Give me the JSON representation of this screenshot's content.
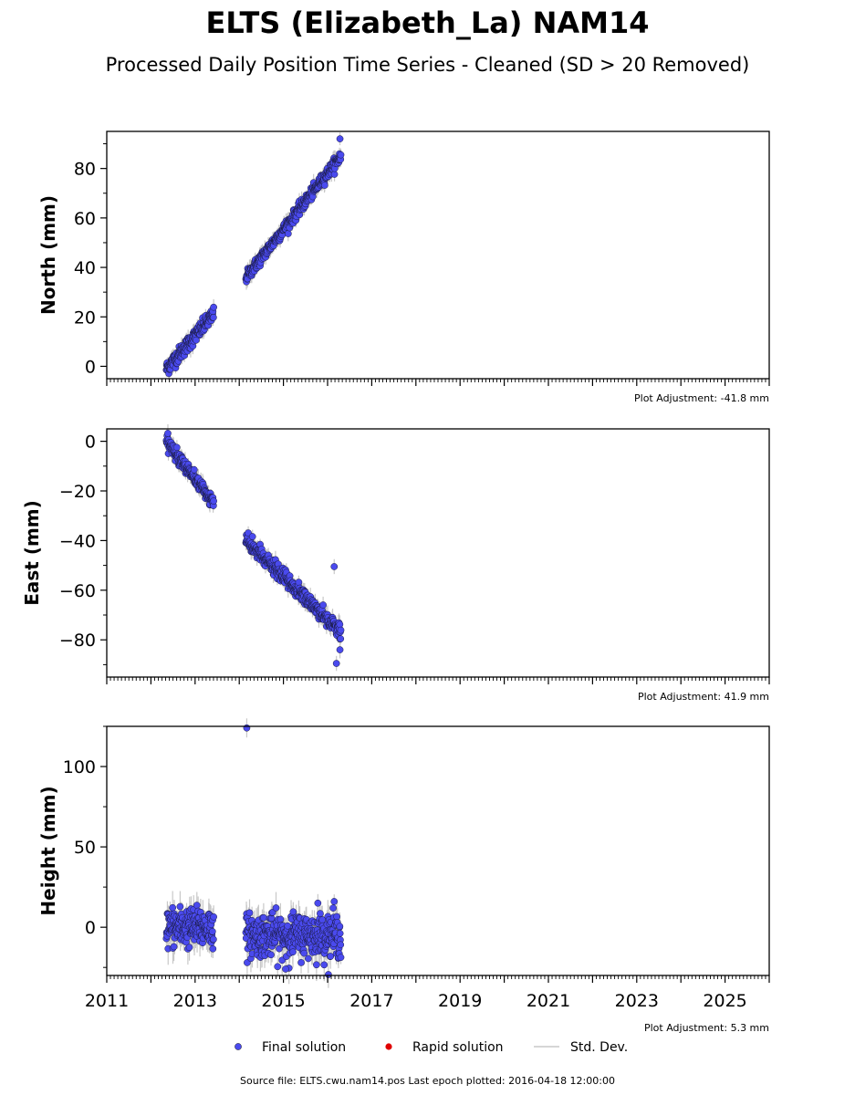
{
  "title": "ELTS (Elizabeth_La) NAM14",
  "subtitle": "Processed Daily Position Time Series - Cleaned (SD > 20 Removed)",
  "chart_data": [
    {
      "type": "scatter",
      "ylabel": "North (mm)",
      "ylim": [
        -5,
        95
      ],
      "yticks": [
        0,
        20,
        40,
        60,
        80
      ],
      "xlim": [
        2011,
        2026
      ],
      "adjustment_label": "Plot Adjustment: -41.8 mm",
      "segments": [
        {
          "x0": 2012.35,
          "x1": 2013.42,
          "y0": -1,
          "y1": 21,
          "noise": 1.5,
          "n": 190
        },
        {
          "x0": 2014.15,
          "x1": 2016.3,
          "y0": 36,
          "y1": 85,
          "noise": 1.2,
          "n": 360
        }
      ],
      "outliers": [
        {
          "x": 2016.28,
          "y": 92
        }
      ],
      "err_mm": 2.5
    },
    {
      "type": "scatter",
      "ylabel": "East (mm)",
      "ylim": [
        -95,
        5
      ],
      "yticks": [
        0,
        -20,
        -40,
        -60,
        -80
      ],
      "xlim": [
        2011,
        2026
      ],
      "adjustment_label": "Plot Adjustment: 41.9 mm",
      "segments": [
        {
          "x0": 2012.35,
          "x1": 2013.42,
          "y0": 0,
          "y1": -25,
          "noise": 1.3,
          "n": 190
        },
        {
          "x0": 2014.15,
          "x1": 2016.3,
          "y0": -40,
          "y1": -77,
          "noise": 1.5,
          "n": 360
        }
      ],
      "outliers": [
        {
          "x": 2016.15,
          "y": -50.5
        },
        {
          "x": 2016.2,
          "y": -89.5
        },
        {
          "x": 2016.28,
          "y": -84
        }
      ],
      "err_mm": 2.5
    },
    {
      "type": "scatter",
      "ylabel": "Height (mm)",
      "ylim": [
        -30,
        125
      ],
      "yticks": [
        0,
        50,
        100
      ],
      "xlim": [
        2011,
        2026
      ],
      "xticks": [
        2011,
        2013,
        2015,
        2017,
        2019,
        2021,
        2023,
        2025
      ],
      "adjustment_label": "Plot Adjustment: 5.3 mm",
      "segments": [
        {
          "x0": 2012.35,
          "x1": 2013.42,
          "y0": 0,
          "y1": 0,
          "noise": 6,
          "n": 190
        },
        {
          "x0": 2014.15,
          "x1": 2016.3,
          "y0": -5,
          "y1": -5,
          "noise": 6.5,
          "n": 360
        }
      ],
      "outliers": [
        {
          "x": 2014.17,
          "y": 124
        },
        {
          "x": 2015.05,
          "y": -26
        },
        {
          "x": 2015.78,
          "y": 15
        },
        {
          "x": 2016.15,
          "y": 16
        }
      ],
      "err_mm": 7
    }
  ],
  "legend": {
    "final": "Final solution",
    "rapid": "Rapid solution",
    "std": "Std. Dev."
  },
  "colors": {
    "final": "#4a4aee",
    "rapid": "#e00000",
    "std": "#c8c8c8"
  },
  "source_text": "Source file: ELTS.cwu.nam14.pos  Last epoch plotted: 2016-04-18 12:00:00"
}
